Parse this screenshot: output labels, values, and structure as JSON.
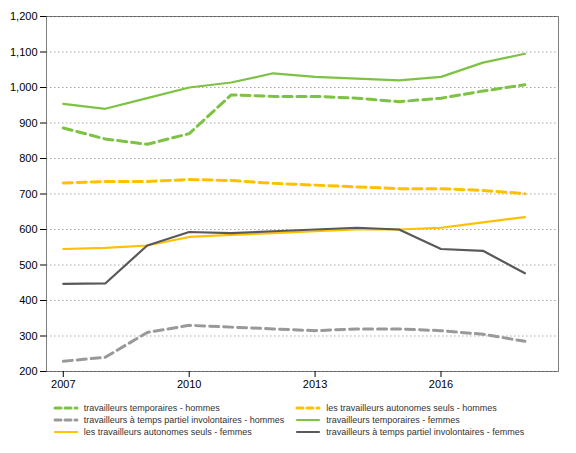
{
  "chart_data": {
    "type": "line",
    "x": [
      2007,
      2008,
      2009,
      2010,
      2011,
      2012,
      2013,
      2014,
      2015,
      2016,
      2017,
      2018
    ],
    "xlim": [
      2006.6,
      2018.8
    ],
    "xticks": [
      2007,
      2010,
      2013,
      2016
    ],
    "ylim": [
      200,
      1200
    ],
    "yticks": [
      200,
      300,
      400,
      500,
      600,
      700,
      800,
      900,
      {
        "value": 1000,
        "label": "1,000"
      },
      {
        "value": 1100,
        "label": "1,100"
      },
      {
        "value": 1200,
        "label": "1,200"
      }
    ],
    "grid": true,
    "legend": "bottom",
    "series": [
      {
        "name": "travailleurs temporaires - hommes",
        "color": "#7dc242",
        "line_style": "dashed",
        "values": [
          886,
          855,
          840,
          870,
          979,
          975,
          975,
          970,
          960,
          970,
          990,
          1008
        ]
      },
      {
        "name": "les travailleurs autonomes seuls - hommes",
        "color": "#ffc000",
        "line_style": "dashed",
        "values": [
          731,
          735,
          735,
          741,
          738,
          730,
          725,
          720,
          715,
          715,
          710,
          701
        ]
      },
      {
        "name": "travailleurs à temps partiel involontaires - hommes",
        "color": "#999999",
        "line_style": "dashed",
        "values": [
          229,
          240,
          310,
          330,
          325,
          320,
          315,
          320,
          320,
          315,
          305,
          285
        ]
      },
      {
        "name": "travailleurs temporaires - femmes",
        "color": "#7dc242",
        "line_style": "solid",
        "values": [
          954,
          940,
          970,
          1000,
          1014,
          1040,
          1030,
          1025,
          1020,
          1030,
          1070,
          1095
        ]
      },
      {
        "name": "les travailleurs autonomes seuls - femmes",
        "color": "#ffc000",
        "line_style": "solid",
        "values": [
          545,
          548,
          555,
          579,
          585,
          590,
          595,
          600,
          600,
          605,
          620,
          635
        ]
      },
      {
        "name": "travailleurs à temps partiel involontaires - femmes",
        "color": "#595959",
        "line_style": "solid",
        "values": [
          447,
          448,
          555,
          593,
          590,
          595,
          600,
          605,
          600,
          545,
          540,
          477
        ]
      }
    ]
  }
}
